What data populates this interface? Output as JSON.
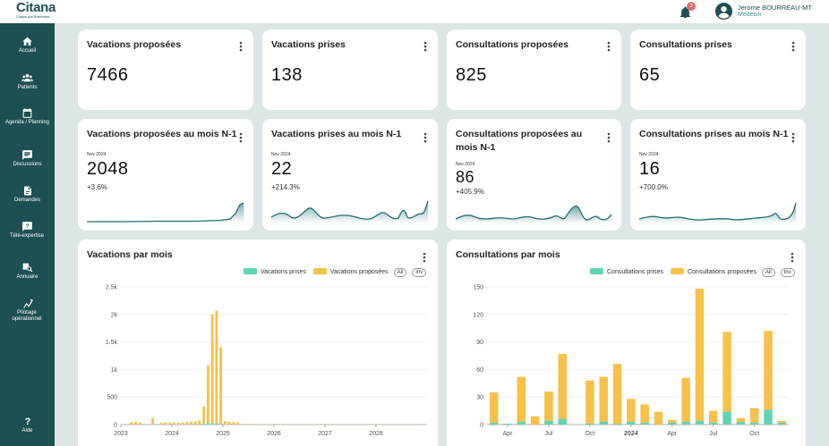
{
  "app": {
    "logo": "Citana",
    "logo_sub": "Citalys par Artémisse",
    "notifications_count": "3",
    "user_name": "Jerome BOURREAU-MT",
    "user_role": "Médecin"
  },
  "sidebar": {
    "items": [
      {
        "label": "Accueil",
        "icon": "home-icon"
      },
      {
        "label": "Patients",
        "icon": "people-icon"
      },
      {
        "label": "Agenda / Planning",
        "icon": "calendar-icon"
      },
      {
        "label": "Discussions",
        "icon": "chat-icon"
      },
      {
        "label": "Demandes",
        "icon": "document-icon"
      },
      {
        "label": "Télé-expertise",
        "icon": "question-bubble-icon"
      },
      {
        "label": "Annuaire",
        "icon": "search-directory-icon"
      },
      {
        "label": "Pilotage opérationnel",
        "icon": "network-icon"
      }
    ],
    "help": "Aide"
  },
  "kpis": [
    {
      "title": "Vacations proposées",
      "value": "7466"
    },
    {
      "title": "Vacations prises",
      "value": "138"
    },
    {
      "title": "Consultations proposées",
      "value": "825"
    },
    {
      "title": "Consultations prises",
      "value": "65"
    }
  ],
  "monthly_kpis": [
    {
      "title": "Vacations proposées au mois N-1",
      "date": "Nov 2024",
      "value": "2048",
      "change": "+3.6%"
    },
    {
      "title": "Vacations prises au mois N-1",
      "date": "Nov 2024",
      "value": "22",
      "change": "+214.3%"
    },
    {
      "title": "Consultations proposées au mois N-1",
      "date": "Nov 2024",
      "value": "86",
      "change": "+405.9%"
    },
    {
      "title": "Consultations prises au mois N-1",
      "date": "Nov 2024",
      "value": "16",
      "change": "+700.0%"
    }
  ],
  "charts_meta": {
    "vacations": {
      "title": "Vacations par mois",
      "legend_taken": "Vacations prises",
      "legend_offered": "Vacations proposées",
      "all_label": "All",
      "inv_label": "Inv"
    },
    "consultations": {
      "title": "Consultations par mois",
      "legend_taken": "Consultations prises",
      "legend_offered": "Consultations proposées",
      "all_label": "All",
      "inv_label": "Inv"
    }
  },
  "colors": {
    "taken": "#5fd4b2",
    "offered": "#f7c14a",
    "sidebar": "#1e4f52",
    "spark": "#1e6f73"
  },
  "chart_data": [
    {
      "type": "bar",
      "title": "Vacations par mois",
      "stacked": true,
      "ylim": [
        0,
        2500
      ],
      "yticks": [
        "0",
        "500",
        "1k",
        "1.5k",
        "2k",
        "2.5k"
      ],
      "ytick_values": [
        0,
        500,
        1000,
        1500,
        2000,
        2500
      ],
      "xlim": [
        "2023-01",
        "2028-12"
      ],
      "xticks": [
        {
          "label": "2023",
          "x": "2023-01"
        },
        {
          "label": "2024",
          "x": "2024-01"
        },
        {
          "label": "2025",
          "x": "2025-01"
        },
        {
          "label": "2026",
          "x": "2026-01"
        },
        {
          "label": "2027",
          "x": "2027-01"
        },
        {
          "label": "2028",
          "x": "2028-01"
        }
      ],
      "x": [
        "2023-03",
        "2023-04",
        "2023-05",
        "2023-08",
        "2023-10",
        "2023-11",
        "2023-12",
        "2024-01",
        "2024-02",
        "2024-03",
        "2024-04",
        "2024-05",
        "2024-06",
        "2024-07",
        "2024-08",
        "2024-09",
        "2024-10",
        "2024-11",
        "2024-12",
        "2025-01",
        "2025-02",
        "2025-03",
        "2025-04",
        "2025-05",
        "2025-06",
        "2025-07",
        "2025-08",
        "2025-09",
        "2025-10",
        "2025-11",
        "2025-12",
        "2026-01",
        "2026-02",
        "2026-03",
        "2026-04",
        "2026-05",
        "2026-06",
        "2026-07",
        "2026-08",
        "2026-09",
        "2026-10",
        "2026-11",
        "2026-12",
        "2027-01",
        "2027-02",
        "2027-03",
        "2027-04",
        "2027-05",
        "2027-06",
        "2027-07",
        "2027-08",
        "2027-09",
        "2027-10",
        "2027-11",
        "2027-12",
        "2028-01",
        "2028-02",
        "2028-03",
        "2028-04",
        "2028-05",
        "2028-06",
        "2028-07",
        "2028-08",
        "2028-09",
        "2028-10",
        "2028-11",
        "2028-12"
      ],
      "series": [
        {
          "name": "Vacations prises",
          "values": [
            2,
            2,
            1,
            2,
            1,
            1,
            1,
            1,
            1,
            1,
            1,
            2,
            3,
            5,
            20,
            30,
            25,
            22,
            4,
            2,
            1,
            1,
            1,
            0,
            0,
            0,
            0,
            0,
            0,
            0,
            0,
            0,
            0,
            0,
            0,
            0,
            0,
            0,
            0,
            0,
            0,
            0,
            0,
            0,
            0,
            0,
            0,
            0,
            0,
            0,
            0,
            0,
            0,
            0,
            0,
            0,
            0,
            0,
            0,
            0,
            0,
            0,
            0,
            0,
            0,
            0,
            0
          ]
        },
        {
          "name": "Vacations proposées",
          "values": [
            40,
            50,
            35,
            120,
            30,
            35,
            30,
            40,
            30,
            35,
            45,
            50,
            55,
            70,
            310,
            1050,
            1980,
            2048,
            1400,
            60,
            50,
            45,
            40,
            10,
            5,
            5,
            5,
            5,
            5,
            5,
            5,
            5,
            5,
            5,
            5,
            5,
            5,
            5,
            5,
            5,
            5,
            5,
            5,
            5,
            5,
            5,
            5,
            5,
            5,
            5,
            5,
            5,
            5,
            5,
            5,
            5,
            5,
            5,
            5,
            5,
            5,
            5,
            5,
            5,
            5,
            5,
            5
          ]
        }
      ]
    },
    {
      "type": "bar",
      "title": "Consultations par mois",
      "stacked": true,
      "ylim": [
        0,
        150
      ],
      "yticks": [
        "0",
        "30",
        "60",
        "90",
        "120",
        "150"
      ],
      "ytick_values": [
        0,
        30,
        60,
        90,
        120,
        150
      ],
      "categories": [
        "2023-03",
        "2023-04",
        "2023-05",
        "2023-06",
        "2023-07",
        "2023-08",
        "2023-09",
        "2023-10",
        "2023-11",
        "2023-12",
        "2024-01",
        "2024-02",
        "2024-03",
        "2024-04",
        "2024-05",
        "2024-06",
        "2024-07",
        "2024-08",
        "2024-09",
        "2024-10",
        "2024-11",
        "2024-12"
      ],
      "xticks": [
        {
          "label": "Apr",
          "x": "2023-04"
        },
        {
          "label": "Jul",
          "x": "2023-07"
        },
        {
          "label": "Oct",
          "x": "2023-10"
        },
        {
          "label": "2024",
          "x": "2024-01",
          "bold": true
        },
        {
          "label": "Apr",
          "x": "2024-04"
        },
        {
          "label": "Jul",
          "x": "2024-07"
        },
        {
          "label": "Oct",
          "x": "2024-10"
        }
      ],
      "series": [
        {
          "name": "Consultations prises",
          "values": [
            2,
            1,
            3,
            0,
            4,
            6,
            0,
            1,
            3,
            1,
            3,
            2,
            0,
            2,
            3,
            4,
            2,
            14,
            3,
            2,
            16,
            2
          ]
        },
        {
          "name": "Consultations proposées",
          "values": [
            33,
            0,
            49,
            9,
            32,
            71,
            0,
            47,
            49,
            65,
            25,
            20,
            14,
            3,
            48,
            144,
            13,
            87,
            4,
            16,
            86,
            2
          ]
        }
      ]
    }
  ]
}
